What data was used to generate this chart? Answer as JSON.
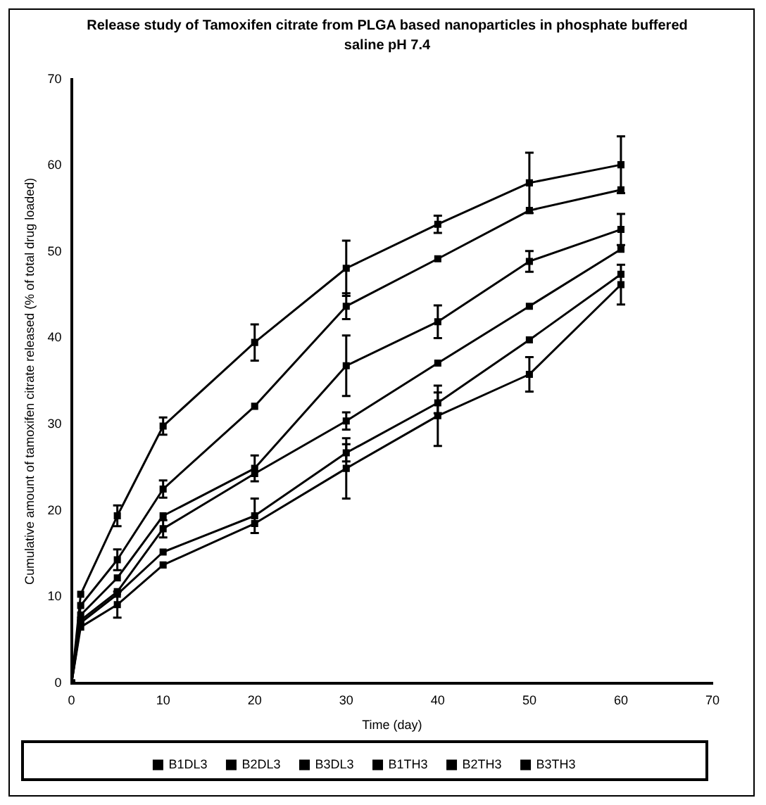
{
  "chart_data": {
    "type": "line",
    "title": "Release study of Tamoxifen citrate from PLGA based nanoparticles in phosphate buffered saline pH 7.4",
    "xlabel": "Time (day)",
    "ylabel": "Cumulative amount of tamoxifen citrate released (% of total drug loaded)",
    "x": [
      0,
      1,
      5,
      10,
      20,
      30,
      40,
      50,
      60
    ],
    "xlim": [
      0,
      70
    ],
    "xticks": [
      0,
      10,
      20,
      30,
      40,
      50,
      60,
      70
    ],
    "ylim": [
      0,
      70
    ],
    "yticks": [
      0,
      10,
      20,
      30,
      40,
      50,
      60,
      70
    ],
    "grid": false,
    "legend": "bottom",
    "marker": "square",
    "line_style": "solid",
    "series": [
      {
        "name": "B1DL3",
        "color": "#000000",
        "values": [
          0,
          6.5,
          9.1,
          13.7,
          18.5,
          24.9,
          31,
          35.8,
          46.2
        ],
        "errors": [
          null,
          null,
          1.5,
          null,
          null,
          3.5,
          3.5,
          2,
          2.3
        ]
      },
      {
        "name": "B2DL3",
        "color": "#000000",
        "values": [
          0,
          7,
          10.3,
          15.2,
          19.4,
          26.7,
          32.5,
          39.8,
          47.4
        ],
        "errors": [
          null,
          null,
          null,
          null,
          2,
          1,
          1.2,
          null,
          null
        ]
      },
      {
        "name": "B3DL3",
        "color": "#000000",
        "values": [
          0,
          7.3,
          10.6,
          17.9,
          24.3,
          30.4,
          37.1,
          43.7,
          50.3
        ],
        "errors": [
          null,
          null,
          null,
          1,
          null,
          1,
          null,
          null,
          null
        ]
      },
      {
        "name": "B1TH3",
        "color": "#000000",
        "values": [
          0,
          7.9,
          12.2,
          19.4,
          24.9,
          36.8,
          41.9,
          48.9,
          52.6
        ],
        "errors": [
          null,
          null,
          null,
          null,
          1.5,
          3.5,
          1.9,
          1.2,
          1.8
        ]
      },
      {
        "name": "B2TH3",
        "color": "#000000",
        "values": [
          0,
          9,
          14.3,
          22.5,
          32.1,
          43.7,
          49.2,
          54.8,
          57.2
        ],
        "errors": [
          null,
          null,
          1.2,
          1,
          null,
          1.5,
          null,
          null,
          null
        ]
      },
      {
        "name": "B3TH3",
        "color": "#000000",
        "values": [
          0,
          10.3,
          19.4,
          29.8,
          39.5,
          48.1,
          53.2,
          58,
          60.1
        ],
        "errors": [
          null,
          null,
          1.2,
          1,
          2.1,
          3.2,
          1,
          3.5,
          3.3
        ]
      }
    ]
  }
}
